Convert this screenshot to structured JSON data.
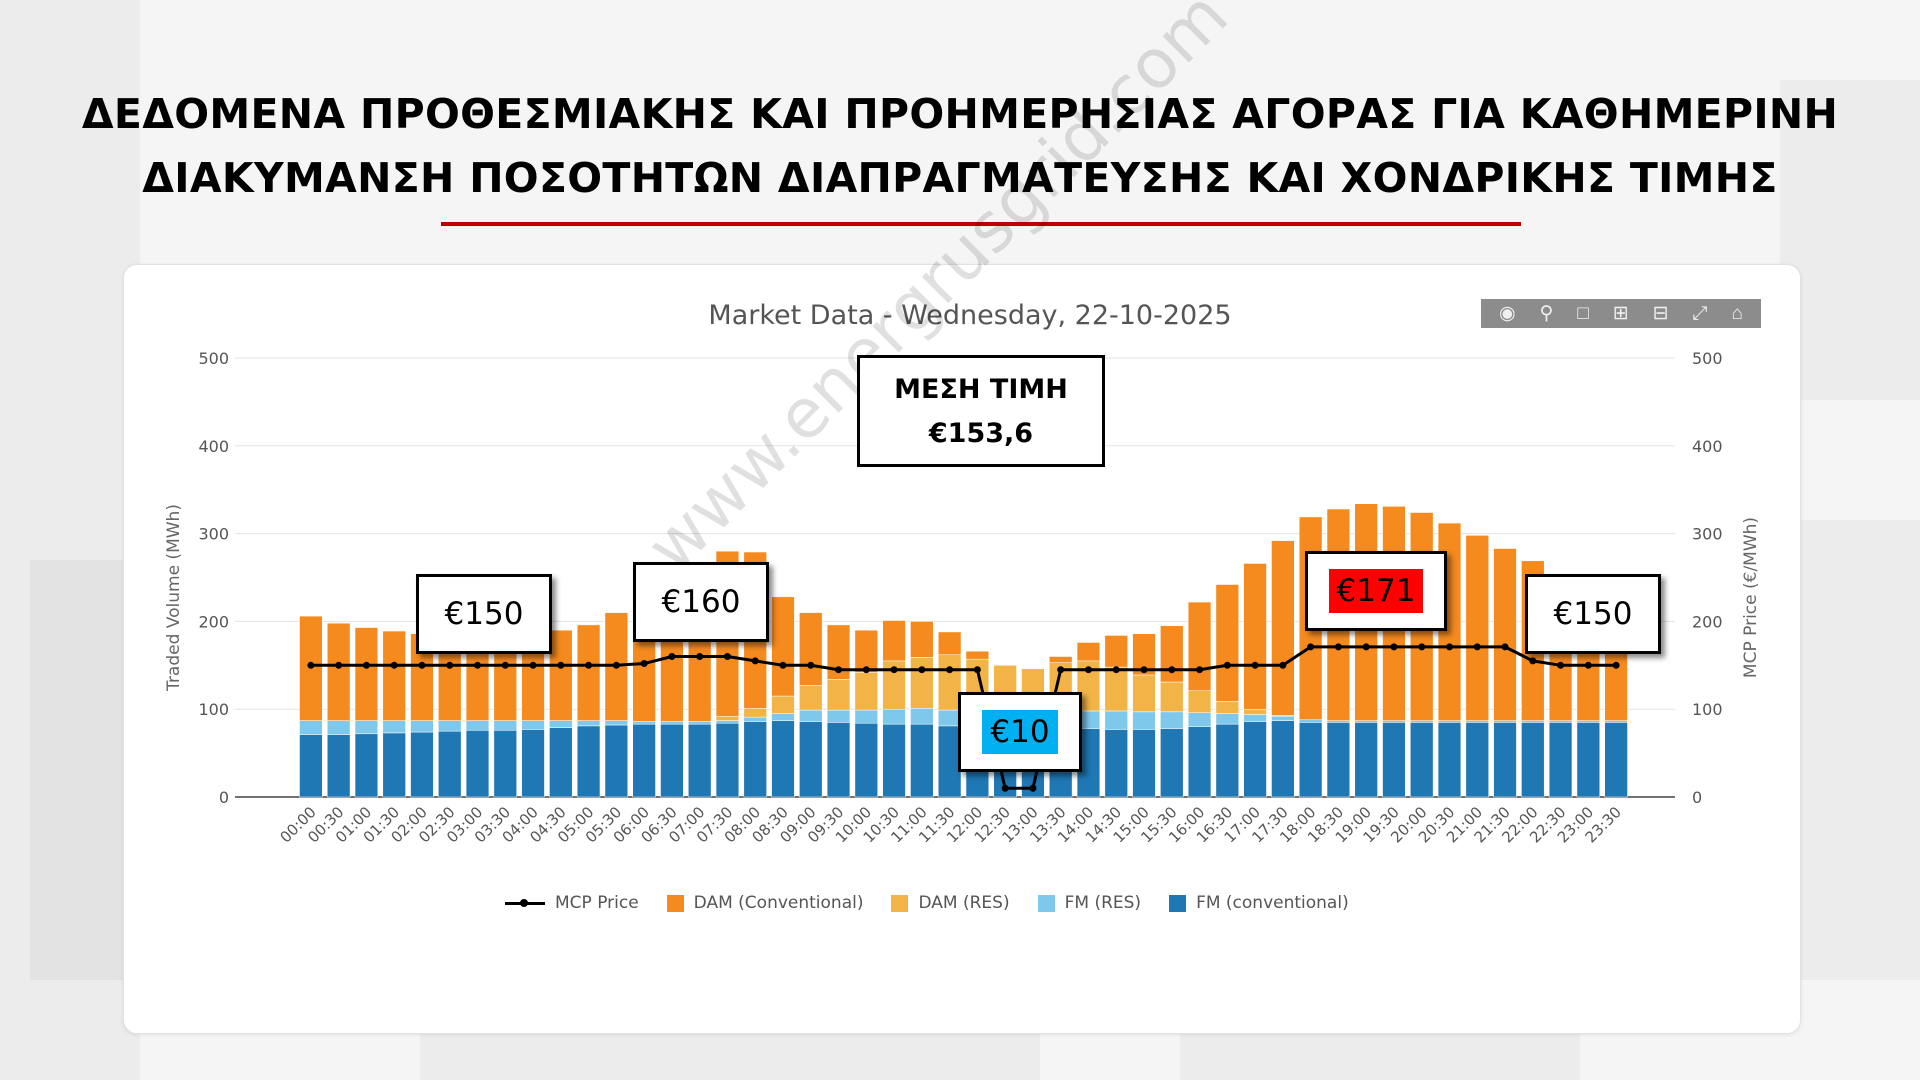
{
  "header": {
    "line1": "ΔΕΔΟΜΕΝΑ ΠΡΟΘΕΣΜΙΑΚΗΣ ΚΑΙ ΠΡΟΗΜΕΡΗΣΙΑΣ ΑΓΟΡΑΣ  ΓΙΑ ΚΑΘΗΜΕΡΙΝΗ",
    "line2": "ΔΙΑΚΥΜΑΝΣΗ ΠΟΣΟΤΗΤΩΝ ΔΙΑΠΡΑΓΜΑΤΕΥΣΗΣ ΚΑΙ ΧΟΝΔΡΙΚΗΣ ΤΙΜΗΣ"
  },
  "toolbar": {
    "icons": [
      "camera-icon",
      "zoom-icon",
      "select-icon",
      "zoom-in-icon",
      "zoom-out-icon",
      "autoscale-icon",
      "home-icon"
    ]
  },
  "annotations": {
    "avg_label": "ΜΕΣΗ ΤΙΜΗ",
    "avg_value": "€153,6",
    "callouts": [
      {
        "text": "€150",
        "highlight": ""
      },
      {
        "text": "€160",
        "highlight": ""
      },
      {
        "text": "€10",
        "highlight": "#00b0f0"
      },
      {
        "text": "€171",
        "highlight": "#ff0000"
      },
      {
        "text": "€150",
        "highlight": ""
      }
    ]
  },
  "watermark": "www.energrusgrid.com",
  "colors": {
    "fm_conv": "#1f77b4",
    "fm_res": "#7ec8ec",
    "dam_res": "#f2b447",
    "dam_conv": "#f58a1f",
    "mcp": "#000000"
  },
  "chart_data": {
    "type": "bar",
    "title": "Market Data - Wednesday, 22-10-2025",
    "xlabel": "",
    "ylabel": "Traded Volume (MWh)",
    "y2label": "MCP Price (€/MWh)",
    "ylim": [
      0,
      500
    ],
    "y2lim": [
      0,
      500
    ],
    "yticks": [
      0,
      100,
      200,
      300,
      400,
      500
    ],
    "stacked": true,
    "legend_position": "bottom",
    "categories": [
      "00:00",
      "00:30",
      "01:00",
      "01:30",
      "02:00",
      "02:30",
      "03:00",
      "03:30",
      "04:00",
      "04:30",
      "05:00",
      "05:30",
      "06:00",
      "06:30",
      "07:00",
      "07:30",
      "08:00",
      "08:30",
      "09:00",
      "09:30",
      "10:00",
      "10:30",
      "11:00",
      "11:30",
      "12:00",
      "12:30",
      "13:00",
      "13:30",
      "14:00",
      "14:30",
      "15:00",
      "15:30",
      "16:00",
      "16:30",
      "17:00",
      "17:30",
      "18:00",
      "18:30",
      "19:00",
      "19:30",
      "20:00",
      "20:30",
      "21:00",
      "21:30",
      "22:00",
      "22:30",
      "23:00",
      "23:30"
    ],
    "series": [
      {
        "name": "FM (conventional)",
        "kind": "bar",
        "values": [
          71,
          71,
          72,
          73,
          74,
          75,
          76,
          76,
          77,
          79,
          81,
          82,
          83,
          83,
          83,
          84,
          86,
          87,
          86,
          85,
          84,
          83,
          83,
          81,
          80,
          78,
          76,
          77,
          78,
          77,
          77,
          78,
          80,
          83,
          86,
          87,
          85,
          85,
          85,
          85,
          85,
          85,
          85,
          85,
          85,
          85,
          85,
          85
        ]
      },
      {
        "name": "FM (RES)",
        "kind": "bar",
        "values": [
          16,
          16,
          15,
          14,
          13,
          12,
          11,
          11,
          10,
          8,
          6,
          5,
          3,
          3,
          3,
          3,
          5,
          8,
          13,
          14,
          15,
          17,
          18,
          18,
          17,
          17,
          15,
          16,
          20,
          21,
          20,
          19,
          16,
          12,
          8,
          5,
          3,
          2,
          2,
          2,
          2,
          2,
          2,
          2,
          2,
          2,
          2,
          2
        ]
      },
      {
        "name": "DAM (RES)",
        "kind": "bar",
        "values": [
          0,
          0,
          0,
          0,
          0,
          0,
          0,
          0,
          0,
          0,
          0,
          0,
          0,
          0,
          0,
          5,
          10,
          20,
          28,
          35,
          43,
          55,
          58,
          63,
          60,
          55,
          55,
          60,
          57,
          50,
          42,
          34,
          25,
          14,
          6,
          1,
          0,
          0,
          0,
          0,
          0,
          0,
          0,
          0,
          0,
          0,
          0,
          0
        ]
      },
      {
        "name": "DAM (Conventional)",
        "kind": "bar",
        "values": [
          119,
          111,
          106,
          102,
          99,
          95,
          92,
          93,
          96,
          103,
          109,
          123,
          145,
          160,
          167,
          188,
          178,
          113,
          83,
          62,
          48,
          46,
          41,
          26,
          9,
          0,
          0,
          7,
          21,
          36,
          47,
          64,
          101,
          133,
          166,
          199,
          231,
          241,
          247,
          244,
          237,
          225,
          211,
          196,
          182,
          158,
          118,
          102
        ]
      },
      {
        "name": "MCP Price",
        "kind": "line",
        "values": [
          150,
          150,
          150,
          150,
          150,
          150,
          150,
          150,
          150,
          150,
          150,
          150,
          152,
          160,
          160,
          160,
          155,
          150,
          150,
          145,
          145,
          145,
          145,
          145,
          145,
          10,
          10,
          145,
          145,
          145,
          145,
          145,
          145,
          150,
          150,
          150,
          171,
          171,
          171,
          171,
          171,
          171,
          171,
          171,
          155,
          150,
          150,
          150
        ]
      }
    ]
  }
}
